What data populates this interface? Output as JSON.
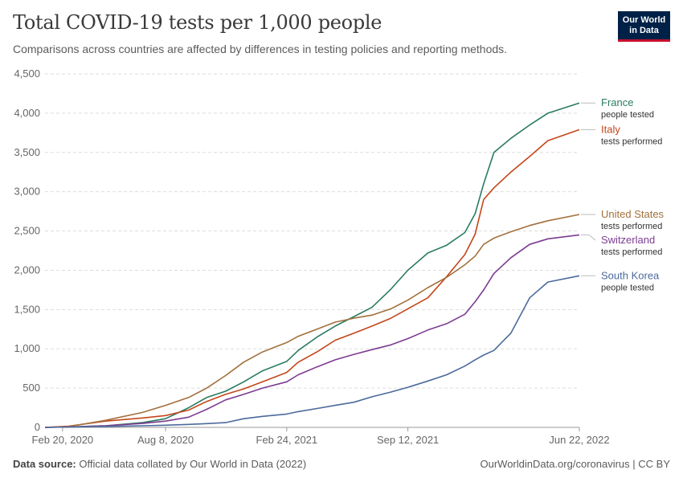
{
  "header": {
    "title": "Total COVID-19 tests per 1,000 people",
    "subtitle": "Comparisons across countries are affected by differences in testing policies and reporting methods."
  },
  "logo": {
    "line1": "Our World",
    "line2": "in Data",
    "bg_color": "#002147",
    "accent_color": "#c8102e"
  },
  "footer": {
    "source_label": "Data source:",
    "source_text": "Official data collated by Our World in Data (2022)",
    "link_text": "OurWorldinData.org/coronavirus | CC BY"
  },
  "chart_data": {
    "type": "line",
    "x_type": "date",
    "xlim": [
      "2020-01-22",
      "2022-06-22"
    ],
    "ylim": [
      0,
      4500
    ],
    "y_ticks": [
      0,
      500,
      1000,
      1500,
      2000,
      2500,
      3000,
      3500,
      4000,
      4500
    ],
    "y_tick_labels": [
      "0",
      "500",
      "1,000",
      "1,500",
      "2,000",
      "2,500",
      "3,000",
      "3,500",
      "4,000",
      "4,500"
    ],
    "x_ticks": [
      "2020-02-20",
      "2020-08-08",
      "2021-02-24",
      "2021-09-12",
      "2022-06-22"
    ],
    "x_tick_labels": [
      "Feb 20, 2020",
      "Aug 8, 2020",
      "Feb 24, 2021",
      "Sep 12, 2021",
      "Jun 22, 2022"
    ],
    "grid": "horizontal dashed",
    "legend": "right, labels at line ends",
    "series": [
      {
        "name": "France",
        "note": "people tested",
        "color": "#2a7b63",
        "x": [
          "2020-01-22",
          "2020-03-01",
          "2020-05-01",
          "2020-07-01",
          "2020-08-08",
          "2020-09-15",
          "2020-10-15",
          "2020-11-15",
          "2020-12-15",
          "2021-01-15",
          "2021-02-24",
          "2021-03-15",
          "2021-04-15",
          "2021-05-15",
          "2021-06-15",
          "2021-07-15",
          "2021-08-15",
          "2021-09-12",
          "2021-10-15",
          "2021-11-15",
          "2021-12-15",
          "2022-01-01",
          "2022-01-15",
          "2022-02-01",
          "2022-03-01",
          "2022-04-01",
          "2022-05-01",
          "2022-06-22"
        ],
        "y": [
          0,
          5,
          20,
          60,
          110,
          250,
          380,
          460,
          580,
          720,
          840,
          980,
          1150,
          1290,
          1410,
          1530,
          1760,
          2000,
          2220,
          2320,
          2480,
          2720,
          3100,
          3500,
          3680,
          3850,
          4000,
          4130
        ]
      },
      {
        "name": "Italy",
        "note": "tests performed",
        "color": "#c4461b",
        "x": [
          "2020-01-22",
          "2020-03-01",
          "2020-05-01",
          "2020-07-01",
          "2020-08-08",
          "2020-09-15",
          "2020-10-15",
          "2020-11-15",
          "2020-12-15",
          "2021-01-15",
          "2021-02-24",
          "2021-03-15",
          "2021-04-15",
          "2021-05-15",
          "2021-06-15",
          "2021-07-15",
          "2021-08-15",
          "2021-09-12",
          "2021-10-15",
          "2021-11-15",
          "2021-12-15",
          "2022-01-01",
          "2022-01-15",
          "2022-02-01",
          "2022-03-01",
          "2022-04-01",
          "2022-05-01",
          "2022-06-22"
        ],
        "y": [
          0,
          15,
          80,
          120,
          150,
          220,
          330,
          420,
          490,
          580,
          700,
          830,
          960,
          1110,
          1200,
          1290,
          1390,
          1510,
          1650,
          1920,
          2200,
          2460,
          2900,
          3050,
          3250,
          3450,
          3650,
          3790
        ]
      },
      {
        "name": "United States",
        "note": "tests performed",
        "color": "#a2703c",
        "x": [
          "2020-01-22",
          "2020-03-01",
          "2020-05-01",
          "2020-07-01",
          "2020-08-08",
          "2020-09-15",
          "2020-10-15",
          "2020-11-15",
          "2020-12-15",
          "2021-01-15",
          "2021-02-24",
          "2021-03-15",
          "2021-04-15",
          "2021-05-15",
          "2021-06-15",
          "2021-07-15",
          "2021-08-15",
          "2021-09-12",
          "2021-10-15",
          "2021-11-15",
          "2021-12-15",
          "2022-01-01",
          "2022-01-15",
          "2022-02-01",
          "2022-03-01",
          "2022-04-01",
          "2022-05-01",
          "2022-06-22"
        ],
        "y": [
          0,
          10,
          90,
          190,
          280,
          380,
          500,
          660,
          830,
          960,
          1080,
          1160,
          1250,
          1340,
          1390,
          1430,
          1510,
          1620,
          1780,
          1910,
          2070,
          2180,
          2330,
          2410,
          2490,
          2570,
          2630,
          2710
        ]
      },
      {
        "name": "Switzerland",
        "note": "tests performed",
        "color": "#7c3c91",
        "x": [
          "2020-01-22",
          "2020-03-01",
          "2020-05-01",
          "2020-07-01",
          "2020-08-08",
          "2020-09-15",
          "2020-10-15",
          "2020-11-15",
          "2020-12-15",
          "2021-01-15",
          "2021-02-24",
          "2021-03-15",
          "2021-04-15",
          "2021-05-15",
          "2021-06-15",
          "2021-07-15",
          "2021-08-15",
          "2021-09-12",
          "2021-10-15",
          "2021-11-15",
          "2021-12-15",
          "2022-01-01",
          "2022-01-15",
          "2022-02-01",
          "2022-03-01",
          "2022-04-01",
          "2022-05-01",
          "2022-06-22"
        ],
        "y": [
          0,
          5,
          20,
          50,
          80,
          130,
          230,
          350,
          420,
          500,
          580,
          670,
          770,
          860,
          930,
          990,
          1050,
          1130,
          1240,
          1320,
          1440,
          1600,
          1750,
          1960,
          2160,
          2330,
          2400,
          2450
        ]
      },
      {
        "name": "South Korea",
        "note": "people tested",
        "color": "#4c6a9c",
        "x": [
          "2020-01-22",
          "2020-03-01",
          "2020-05-01",
          "2020-07-01",
          "2020-08-08",
          "2020-09-15",
          "2020-10-15",
          "2020-11-15",
          "2020-12-15",
          "2021-01-15",
          "2021-02-24",
          "2021-03-15",
          "2021-04-15",
          "2021-05-15",
          "2021-06-15",
          "2021-07-15",
          "2021-08-15",
          "2021-09-12",
          "2021-10-15",
          "2021-11-15",
          "2021-12-15",
          "2022-01-01",
          "2022-01-15",
          "2022-02-01",
          "2022-03-01",
          "2022-04-01",
          "2022-05-01",
          "2022-06-22"
        ],
        "y": [
          0,
          4,
          12,
          20,
          28,
          38,
          48,
          60,
          110,
          140,
          170,
          200,
          240,
          280,
          320,
          390,
          450,
          510,
          590,
          670,
          780,
          860,
          920,
          980,
          1200,
          1650,
          1850,
          1930
        ]
      }
    ]
  }
}
